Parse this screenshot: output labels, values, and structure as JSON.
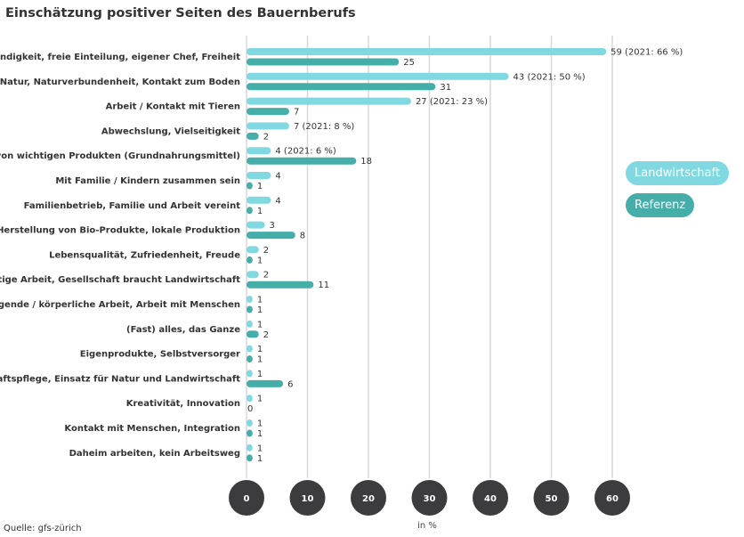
{
  "chart_data": {
    "type": "bar",
    "orientation": "horizontal",
    "title": "Einschätzung positiver Seiten des Bauernberufs",
    "source": "Quelle: gfs-zürich",
    "xlabel": "in %",
    "xlim": [
      0,
      60
    ],
    "xticks": [
      "0",
      "10",
      "20",
      "30",
      "40",
      "50",
      "60"
    ],
    "grid": true,
    "legend_position": "right",
    "categories": [
      "Selbstständigkeit, freie Einteilung, eigener Chef, Freiheit",
      "Arbeiten in Natur, Naturverbundenheit, Kontakt zum Boden",
      "Arbeit / Kontakt mit Tieren",
      "Abwechslung, Vielseitigkeit",
      "Herstellen von wichtigen Produkten (Grundnahrungsmittel)",
      "Mit Familie / Kindern zusammen sein",
      "Familienbetrieb, Familie und Arbeit vereint",
      "Herstellung von Bio-Produkte, lokale Produktion",
      "Lebensqualität, Zufriedenheit, Freude",
      "Wichtige Arbeit, Gesellschaft braucht Landwirtschaft",
      "Anstrengende / körperliche Arbeit, Arbeit mit Menschen",
      "(Fast) alles, das Ganze",
      "Eigenprodukte, Selbstversorger",
      "Landschaftspflege, Einsatz für Natur und Landwirtschaft",
      "Kreativität, Innovation",
      "Kontakt mit Menschen, Integration",
      "Daheim arbeiten, kein Arbeitsweg"
    ],
    "series": [
      {
        "name": "Landwirtschaft",
        "color": "#80d8e0",
        "values": [
          59,
          43,
          27,
          7,
          4,
          4,
          4,
          3,
          2,
          2,
          1,
          1,
          1,
          1,
          1,
          1,
          1
        ],
        "labels": [
          "59 (2021: 66 %)",
          "43 (2021: 50 %)",
          "27 (2021: 23 %)",
          "7 (2021: 8 %)",
          "4 (2021: 6 %)",
          "4",
          "4",
          "3",
          "2",
          "2",
          "1",
          "1",
          "1",
          "1",
          "1",
          "1",
          "1"
        ]
      },
      {
        "name": "Referenz",
        "color": "#46aea9",
        "values": [
          25,
          31,
          7,
          2,
          18,
          1,
          1,
          8,
          1,
          11,
          1,
          2,
          1,
          6,
          0,
          1,
          1
        ],
        "labels": [
          "25",
          "31",
          "7",
          "2",
          "18",
          "1",
          "1",
          "8",
          "1",
          "11",
          "1",
          "2",
          "1",
          "6",
          "0",
          "1",
          "1"
        ]
      }
    ]
  }
}
